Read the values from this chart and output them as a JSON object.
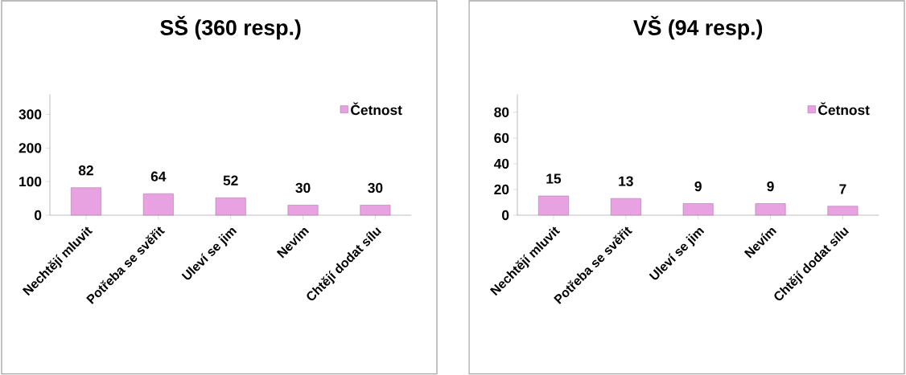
{
  "chart_data": [
    {
      "type": "bar",
      "title": "SŠ (360 resp.)",
      "categories": [
        "Nechtějí mluvit",
        "Potřeba se svěřit",
        "Uleví se jim",
        "Nevím",
        "Chtějí dodat sílu"
      ],
      "series": [
        {
          "name": "Četnost",
          "color": "#e8a2e2",
          "values": [
            82,
            64,
            52,
            30,
            30
          ]
        }
      ],
      "ylim": [
        0,
        360
      ],
      "yticks": [
        0,
        100,
        200,
        300
      ],
      "data_labels": true,
      "legend": "top right",
      "grid": false
    },
    {
      "type": "bar",
      "title": "VŠ (94 resp.)",
      "categories": [
        "Nechtějí mluvit",
        "Potřeba se svěřit",
        "Uleví se jim",
        "Nevím",
        "Chtějí dodat sílu"
      ],
      "series": [
        {
          "name": "Četnost",
          "color": "#e8a2e2",
          "values": [
            15,
            13,
            9,
            9,
            7
          ]
        }
      ],
      "ylim": [
        0,
        94
      ],
      "yticks": [
        0,
        20,
        40,
        60,
        80
      ],
      "data_labels": true,
      "legend": "top right",
      "grid": false
    }
  ]
}
